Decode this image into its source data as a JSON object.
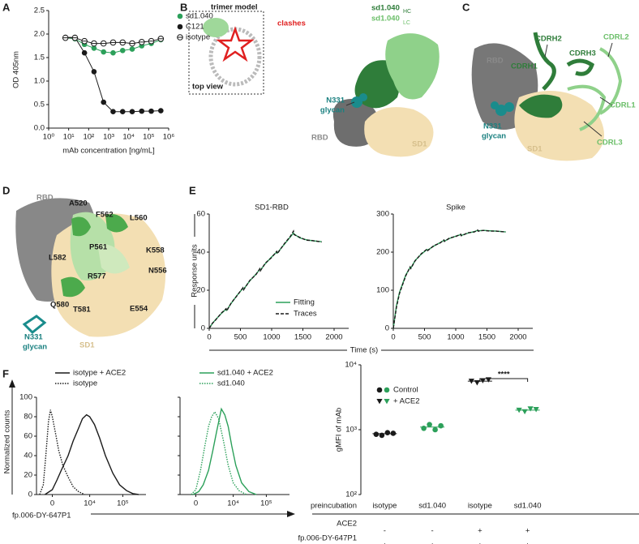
{
  "panel_labels": [
    "A",
    "B",
    "C",
    "D",
    "E",
    "F"
  ],
  "structures": {
    "B": [
      "trimer model",
      "clashes",
      "top view",
      "sd1.040",
      "HC",
      "sd1.040",
      "LC",
      "N331",
      "glycan",
      "RBD",
      "SD1"
    ],
    "C": [
      "CDRH2",
      "CDRH3",
      "CDRL2",
      "RBD",
      "CDRH1",
      "CDRL1",
      "CDRL3",
      "N331",
      "glycan",
      "SD1"
    ],
    "D": [
      "RBD",
      "A520",
      "F562",
      "L560",
      "K558",
      "L582",
      "P561",
      "N556",
      "R577",
      "Q580",
      "T581",
      "E554",
      "N331",
      "glycan",
      "SD1"
    ]
  },
  "chart_data": [
    {
      "type": "line",
      "xlabel": "mAb concentration [ng/mL]",
      "ylabel": "OD 405nm",
      "xscale": "log",
      "x": [
        6.9,
        20.6,
        61.7,
        185,
        556,
        1667,
        5000,
        15000,
        45000,
        135000,
        405000
      ],
      "xlim": [
        1,
        1000000
      ],
      "xticks": [
        {
          "value": 1,
          "label": "10⁰"
        },
        {
          "value": 10,
          "label": "10¹"
        },
        {
          "value": 100,
          "label": "10²"
        },
        {
          "value": 1000,
          "label": "10³"
        },
        {
          "value": 10000,
          "label": "10⁴"
        },
        {
          "value": 100000,
          "label": "10⁵"
        },
        {
          "value": 1000000,
          "label": "10⁶"
        }
      ],
      "ylim": [
        0,
        2.5
      ],
      "yticks": [
        {
          "value": 0,
          "label": "0.0"
        },
        0.5,
        {
          "value": 1,
          "label": "1.0"
        },
        1.5,
        {
          "value": 2,
          "label": "2.0"
        },
        2.5
      ],
      "series": [
        {
          "name": "sd1.040",
          "color": "#2ca05a",
          "marker": "filled",
          "values": [
            1.92,
            1.9,
            1.78,
            1.7,
            1.62,
            1.6,
            1.65,
            1.68,
            1.75,
            1.8,
            1.88
          ]
        },
        {
          "name": "C121",
          "color": "#1a1a1a",
          "marker": "filled",
          "values": [
            1.93,
            1.93,
            1.6,
            1.2,
            0.55,
            0.35,
            0.35,
            0.35,
            0.36,
            0.36,
            0.37
          ]
        },
        {
          "name": "isotype",
          "color": "#1a1a1a",
          "marker": "open",
          "values": [
            1.92,
            1.92,
            1.85,
            1.8,
            1.8,
            1.82,
            1.82,
            1.8,
            1.83,
            1.85,
            1.9
          ]
        }
      ]
    },
    {
      "type": "line",
      "title": "SD1-RBD",
      "ylabel": "Response units",
      "xlabel": "Time (s)",
      "x": [
        0,
        50,
        100,
        200,
        270,
        280,
        350,
        450,
        540,
        550,
        650,
        750,
        810,
        820,
        900,
        1000,
        1080,
        1090,
        1200,
        1300,
        1350,
        1360,
        1450,
        1550,
        1650,
        1800
      ],
      "xlim": [
        0,
        2000
      ],
      "xticks": [
        0,
        500,
        1000,
        1500,
        2000
      ],
      "ylim": [
        0,
        60
      ],
      "yticks": [
        0,
        20,
        40,
        60
      ],
      "series": [
        {
          "name": "Fitting",
          "color": "#2ca05a",
          "line": "solid",
          "values": [
            0,
            2.5,
            4.5,
            8,
            10,
            9.5,
            13,
            17.5,
            21,
            20.5,
            25,
            28.5,
            31,
            30.5,
            34,
            37.5,
            40,
            39.5,
            44,
            48,
            50,
            49.5,
            47.5,
            46.5,
            46,
            45.5
          ]
        },
        {
          "name": "Traces",
          "color": "#1a1a1a",
          "line": "dashed",
          "values": [
            0,
            2.7,
            4.3,
            8.2,
            10.3,
            9.2,
            13.2,
            17.3,
            21.3,
            20.2,
            25.2,
            28.3,
            31.3,
            30.2,
            34.3,
            37.2,
            40.4,
            39.2,
            44.3,
            48.3,
            51,
            49.2,
            47.8,
            46.3,
            46.1,
            45.3
          ]
        }
      ]
    },
    {
      "type": "line",
      "title": "Spike",
      "x": [
        0,
        50,
        100,
        200,
        270,
        280,
        350,
        450,
        540,
        550,
        650,
        750,
        810,
        820,
        900,
        1000,
        1080,
        1090,
        1200,
        1300,
        1350,
        1360,
        1450,
        1550,
        1650,
        1800
      ],
      "xlim": [
        0,
        2000
      ],
      "xticks": [
        0,
        500,
        1000,
        1500,
        2000
      ],
      "ylim": [
        0,
        300
      ],
      "yticks": [
        0,
        100,
        200,
        300
      ],
      "series": [
        {
          "name": "Fitting",
          "color": "#2ca05a",
          "line": "solid",
          "values": [
            0,
            60,
            95,
            140,
            160,
            158,
            178,
            195,
            207,
            205,
            216,
            225,
            231,
            229,
            236,
            242,
            246,
            244,
            250,
            254,
            257,
            256,
            257,
            256,
            255,
            253
          ]
        },
        {
          "name": "Traces",
          "color": "#1a1a1a",
          "line": "dashed",
          "values": [
            0,
            55,
            92,
            138,
            161,
            157,
            177,
            196,
            208,
            204,
            217,
            224,
            232,
            228,
            237,
            241,
            247,
            243,
            251,
            253,
            258,
            255,
            257,
            255,
            255,
            253
          ]
        }
      ]
    },
    {
      "type": "line",
      "ylabel": "Normalized counts",
      "xlabel": "fp.006-DY-647P1",
      "xscale": "biexponential",
      "xlim": [
        -2000,
        500000
      ],
      "xticks": [
        0,
        {
          "value": 10000,
          "label": "10⁴"
        },
        {
          "value": 100000,
          "label": "10⁵"
        }
      ],
      "ylim": [
        0,
        100
      ],
      "yticks": [
        0,
        20,
        40,
        60,
        80,
        100
      ],
      "series": [
        {
          "name": "isotype + ACE2",
          "color": "#1a1a1a",
          "line": "solid",
          "x": [
            -800,
            0,
            500,
            1000,
            2000,
            3000,
            4500,
            6000,
            8000,
            10000,
            14000,
            20000,
            30000,
            50000,
            80000,
            130000,
            200000,
            300000
          ],
          "values": [
            0,
            5,
            15,
            25,
            40,
            55,
            68,
            78,
            82,
            80,
            72,
            58,
            40,
            22,
            10,
            4,
            1,
            0
          ]
        },
        {
          "name": "isotype",
          "color": "#1a1a1a",
          "line": "dotted",
          "x": [
            -1500,
            -1000,
            -700,
            -400,
            -200,
            0,
            300,
            700,
            1200,
            2000,
            3000,
            4500,
            7000
          ],
          "values": [
            0,
            10,
            40,
            75,
            87,
            80,
            65,
            45,
            30,
            18,
            8,
            3,
            0
          ]
        }
      ]
    },
    {
      "type": "line",
      "xscale": "biexponential",
      "xlim": [
        -2000,
        500000
      ],
      "xticks": [
        0,
        {
          "value": 10000,
          "label": "10⁴"
        },
        {
          "value": 100000,
          "label": "10⁵"
        }
      ],
      "ylim": [
        0,
        100
      ],
      "series": [
        {
          "name": "sd1.040 + ACE2",
          "color": "#2ca05a",
          "line": "solid",
          "x": [
            -300,
            300,
            800,
            1500,
            2200,
            3000,
            4300,
            5500,
            7000,
            9000,
            12000,
            18000,
            30000,
            50000
          ],
          "values": [
            0,
            3,
            10,
            25,
            45,
            65,
            88,
            82,
            70,
            50,
            30,
            12,
            3,
            0
          ]
        },
        {
          "name": "sd1.040",
          "color": "#2ca05a",
          "line": "dotted",
          "x": [
            -500,
            0,
            500,
            1000,
            1500,
            2000,
            2600,
            3500,
            5000,
            7000,
            10000,
            15000,
            25000
          ],
          "values": [
            0,
            5,
            25,
            50,
            70,
            80,
            85,
            78,
            55,
            30,
            12,
            4,
            0
          ]
        }
      ]
    },
    {
      "type": "scatter",
      "yscale": "log",
      "ylabel": "gMFI of mAb",
      "ylim": [
        100,
        10000
      ],
      "yticks": [
        {
          "value": 100,
          "label": "10²"
        },
        {
          "value": 1000,
          "label": "10³"
        },
        {
          "value": 10000,
          "label": "10⁴"
        }
      ],
      "category_label": "preincubation",
      "categories": [
        "isotype",
        "sd1.040",
        "isotype",
        "sd1.040"
      ],
      "colors": [
        "#1a1a1a",
        "#2ca05a",
        "#1a1a1a",
        "#2ca05a"
      ],
      "series": [
        {
          "name": "Control",
          "marker": "circle",
          "values": [
            [
              850,
              820,
              900,
              880
            ],
            [
              1050,
              1200,
              1000,
              1150
            ],
            null,
            null
          ]
        },
        {
          "name": "+ ACE2",
          "marker": "triangle",
          "values": [
            null,
            null,
            [
              5600,
              5300,
              5700,
              5900
            ],
            [
              2000,
              1900,
              2100,
              2050
            ]
          ]
        }
      ],
      "medians": [
        870,
        1100,
        5600,
        2000
      ],
      "significance": {
        "label": "****",
        "categories": [
          2,
          3
        ]
      },
      "conditions": [
        {
          "label": "ACE2",
          "cells": [
            "-",
            "-",
            "+",
            "+"
          ]
        },
        {
          "label": "fp.006-DY-647P1",
          "cells": [
            "+",
            "+",
            "+",
            "+"
          ]
        }
      ]
    }
  ]
}
